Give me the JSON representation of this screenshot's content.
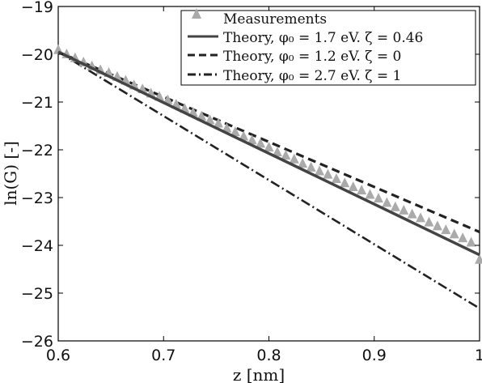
{
  "chart_data": {
    "type": "line",
    "title": "",
    "xlabel": "z [nm]",
    "ylabel": "ln(G) [-]",
    "xlim": [
      0.6,
      1.0
    ],
    "ylim": [
      -26,
      -19
    ],
    "xticks": [
      0.6,
      0.7,
      0.8,
      0.9,
      1.0
    ],
    "xtick_labels": [
      "0.6",
      "0.7",
      "0.8",
      "0.9",
      "1"
    ],
    "yticks": [
      -26,
      -25,
      -24,
      -23,
      -22,
      -21,
      -20,
      -19
    ],
    "ytick_labels": [
      "−26",
      "−25",
      "−24",
      "−23",
      "−22",
      "−21",
      "−20",
      "−19"
    ],
    "grid": false,
    "legend_position": "top-right",
    "series": [
      {
        "name": "Measurements",
        "style": "triangle-markers",
        "color": "#aaaaaa",
        "x": [
          0.6,
          0.608,
          0.616,
          0.624,
          0.632,
          0.64,
          0.648,
          0.656,
          0.664,
          0.672,
          0.68,
          0.688,
          0.696,
          0.704,
          0.712,
          0.72,
          0.728,
          0.736,
          0.744,
          0.752,
          0.76,
          0.768,
          0.776,
          0.784,
          0.792,
          0.8,
          0.808,
          0.816,
          0.824,
          0.832,
          0.84,
          0.848,
          0.856,
          0.864,
          0.872,
          0.88,
          0.888,
          0.896,
          0.904,
          0.912,
          0.92,
          0.928,
          0.936,
          0.944,
          0.952,
          0.96,
          0.968,
          0.976,
          0.984,
          0.992,
          1.0
        ],
        "y": [
          -19.91,
          -20.0,
          -20.08,
          -20.17,
          -20.25,
          -20.33,
          -20.39,
          -20.47,
          -20.55,
          -20.65,
          -20.73,
          -20.82,
          -20.89,
          -20.96,
          -21.05,
          -21.14,
          -21.22,
          -21.3,
          -21.38,
          -21.45,
          -21.55,
          -21.63,
          -21.72,
          -21.8,
          -21.87,
          -21.95,
          -22.05,
          -22.12,
          -22.2,
          -22.29,
          -22.37,
          -22.45,
          -22.52,
          -22.61,
          -22.7,
          -22.78,
          -22.85,
          -22.94,
          -23.02,
          -23.11,
          -23.2,
          -23.27,
          -23.35,
          -23.43,
          -23.52,
          -23.6,
          -23.68,
          -23.77,
          -23.85,
          -23.94,
          -24.3
        ]
      },
      {
        "name": "Theory, φ₀ = 1.7 eV. ζ = 0.46",
        "style": "solid",
        "color": "#444444",
        "x": [
          0.6,
          1.0
        ],
        "y": [
          -19.95,
          -24.2
        ]
      },
      {
        "name": "Theory, φ₀ = 1.2 eV. ζ = 0",
        "style": "dashed",
        "color": "#222222",
        "x": [
          0.6,
          1.0
        ],
        "y": [
          -19.95,
          -23.72
        ]
      },
      {
        "name": "Theory, φ₀ = 2.7 eV. ζ = 1",
        "style": "dash-dot",
        "color": "#222222",
        "x": [
          0.6,
          1.0
        ],
        "y": [
          -19.95,
          -25.32
        ]
      }
    ]
  }
}
